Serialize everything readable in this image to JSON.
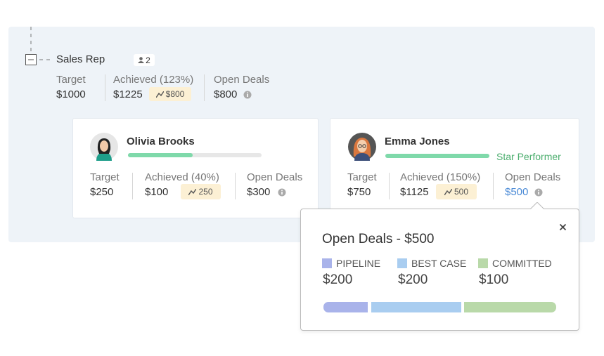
{
  "group": {
    "title": "Sales Rep",
    "member_count": 2,
    "metrics": [
      {
        "label": "Target",
        "value": "$1000"
      },
      {
        "label": "Achieved (123%)",
        "value": "$1225",
        "trend": "$800"
      },
      {
        "label": "Open Deals",
        "value": "$800"
      }
    ]
  },
  "members": [
    {
      "name": "Olivia Brooks",
      "metrics": [
        {
          "label": "Target",
          "value": "$250"
        },
        {
          "label": "Achieved (40%)",
          "value": "$100",
          "trend": "250"
        },
        {
          "label": "Open Deals",
          "value": "$300"
        }
      ]
    },
    {
      "name": "Emma Jones",
      "badge": "Star Performer",
      "metrics": [
        {
          "label": "Target",
          "value": "$750"
        },
        {
          "label": "Achieved (150%)",
          "value": "$1125",
          "trend": "500"
        },
        {
          "label": "Open Deals",
          "value": "$500"
        }
      ]
    }
  ],
  "popup": {
    "title": "Open Deals - $500",
    "categories": [
      {
        "label": "PIPELINE",
        "value": "$200",
        "color": "#a9b3ea"
      },
      {
        "label": "BEST CASE",
        "value": "$200",
        "color": "#a9cdf0"
      },
      {
        "label": "COMMITTED",
        "value": "$100",
        "color": "#b9d9a9"
      }
    ]
  }
}
